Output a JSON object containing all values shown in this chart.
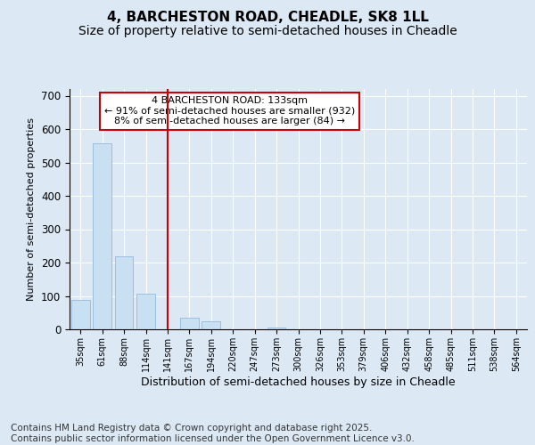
{
  "title_line1": "4, BARCHESTON ROAD, CHEADLE, SK8 1LL",
  "title_line2": "Size of property relative to semi-detached houses in Cheadle",
  "xlabel": "Distribution of semi-detached houses by size in Cheadle",
  "ylabel": "Number of semi-detached properties",
  "categories": [
    "35sqm",
    "61sqm",
    "88sqm",
    "114sqm",
    "141sqm",
    "167sqm",
    "194sqm",
    "220sqm",
    "247sqm",
    "273sqm",
    "300sqm",
    "326sqm",
    "353sqm",
    "379sqm",
    "406sqm",
    "432sqm",
    "458sqm",
    "485sqm",
    "511sqm",
    "538sqm",
    "564sqm"
  ],
  "values": [
    88,
    557,
    218,
    107,
    0,
    36,
    23,
    0,
    0,
    5,
    0,
    0,
    0,
    0,
    0,
    0,
    0,
    0,
    0,
    0,
    0
  ],
  "bar_color": "#c9dff2",
  "bar_edge_color": "#9bbfdd",
  "vline_x": 4,
  "vline_color": "#cc0000",
  "annotation_box_text": "4 BARCHESTON ROAD: 133sqm\n← 91% of semi-detached houses are smaller (932)\n8% of semi-detached houses are larger (84) →",
  "annotation_box_color": "#cc0000",
  "annotation_box_fill": "white",
  "ylim": [
    0,
    720
  ],
  "yticks": [
    0,
    100,
    200,
    300,
    400,
    500,
    600,
    700
  ],
  "bg_color": "#dce9f5",
  "plot_bg_color": "#dce9f5",
  "footer_text": "Contains HM Land Registry data © Crown copyright and database right 2025.\nContains public sector information licensed under the Open Government Licence v3.0.",
  "title_fontsize": 11,
  "subtitle_fontsize": 10,
  "footer_fontsize": 7.5,
  "grid_color": "white"
}
